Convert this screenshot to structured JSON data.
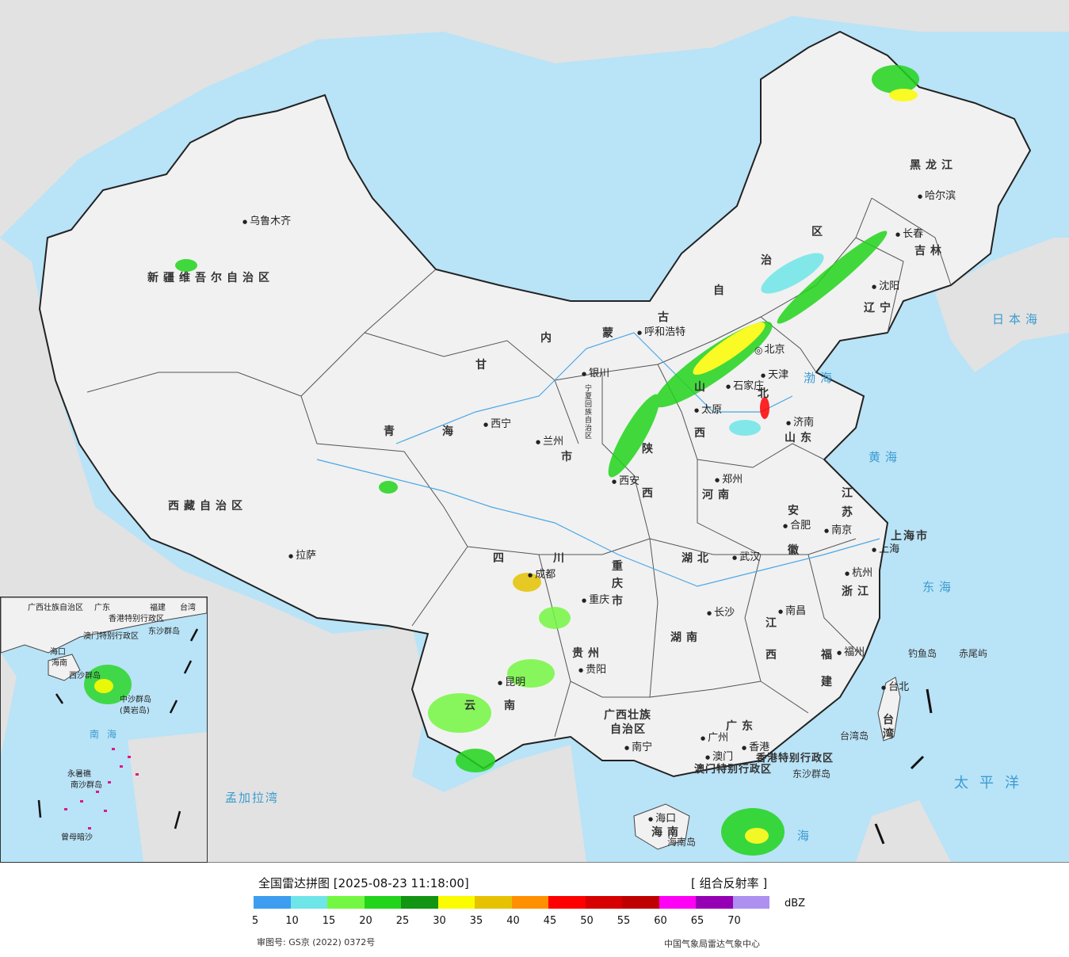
{
  "map": {
    "provinces": {
      "xinjiang": "新疆维吾尔自治区",
      "xizang": "西藏自治区",
      "qinghai_1": "青",
      "qinghai_2": "海",
      "gansu": "甘",
      "neimenggu_1": "内",
      "neimenggu_2": "蒙",
      "neimenggu_3": "古",
      "neimenggu_4": "自",
      "neimenggu_5": "治",
      "neimenggu_6": "区",
      "heilongjiang": "黑龙江",
      "jilin": "吉林",
      "liaoning": "辽宁",
      "hebei": "北",
      "shanxi_1": "山",
      "shanxi_2": "西",
      "shaanxi_1": "陕",
      "shaanxi_2": "西",
      "ningxia": "宁夏回族自治区",
      "shandong": "山东",
      "henan": "河南",
      "jiangsu_1": "江",
      "jiangsu_2": "苏",
      "anhui_1": "安",
      "anhui_2": "徽",
      "shanghai": "上海市",
      "hubei": "湖北",
      "sichuan_1": "四",
      "sichuan_2": "川",
      "chongqing": "重庆市",
      "zhejiang": "浙江",
      "jiangxi_1": "江",
      "jiangxi_2": "西",
      "hunan": "湖南",
      "guizhou": "贵州",
      "yunnan_1": "云",
      "yunnan_2": "南",
      "fujian_1": "福",
      "fujian_2": "建",
      "guangxi_1": "广西壮族",
      "guangxi_2": "自治区",
      "guangdong": "广东",
      "taiwan": "台湾",
      "hainan": "海南",
      "hk": "香港特别行政区",
      "macau": "澳门特别行政区",
      "gansu_city": "市",
      "hubei_bei": "北"
    },
    "cities": {
      "urumqi": "乌鲁木齐",
      "lhasa": "拉萨",
      "xining": "西宁",
      "lanzhou": "兰州",
      "yinchuan": "银川",
      "hohhot": "呼和浩特",
      "beijing": "北京",
      "tianjin": "天津",
      "shijiazhuang": "石家庄",
      "taiyuan": "太原",
      "jinan": "济南",
      "harbin": "哈尔滨",
      "changchun": "长春",
      "shenyang": "沈阳",
      "xian": "西安",
      "zhengzhou": "郑州",
      "hefei": "合肥",
      "nanjing": "南京",
      "shanghai": "上海",
      "hangzhou": "杭州",
      "wuhan": "武汉",
      "chengdu": "成都",
      "chongqing": "重庆",
      "changsha": "长沙",
      "nanchang": "南昌",
      "guiyang": "贵阳",
      "kunming": "昆明",
      "fuzhou": "福州",
      "taibei": "台北",
      "nanning": "南宁",
      "guangzhou": "广州",
      "hongkong": "香港",
      "macao": "澳门",
      "haikou": "海口"
    },
    "seas": {
      "japan_sea": "日本海",
      "bohai": "渤海",
      "yellow_sea": "黄海",
      "east_sea": "东海",
      "pacific": "太平洋",
      "bengal": "孟加拉湾",
      "south_sea": "海"
    },
    "islands": {
      "diaoyu": "钓鱼岛",
      "chiwei": "赤尾屿",
      "taiwan_island": "台湾岛",
      "dongsha": "东沙群岛",
      "hainan_island": "海南岛"
    },
    "inset": {
      "guangxi": "广西壮族自治区",
      "guangdong": "广东",
      "fujian": "福建",
      "taiwan": "台湾",
      "hk": "香港特别行政区",
      "macau": "澳门特别行政区",
      "dongsha": "东沙群岛",
      "haikou": "海口",
      "hainan": "海南",
      "xisha": "西沙群岛",
      "zhongsha": "中沙群岛",
      "huangyan": "(黄岩岛)",
      "south_sea": "南海",
      "yongshu": "永暑礁",
      "nansha": "南沙群岛",
      "zengmu": "曾母暗沙"
    }
  },
  "legend": {
    "title": "全国雷达拼图 [2025-08-23 11:18:00]",
    "product": "[ 组合反射率 ]",
    "unit": "dBZ",
    "colors": [
      "#3d9ef0",
      "#6ee5e8",
      "#74f742",
      "#22d41c",
      "#129512",
      "#fcfc00",
      "#e6c200",
      "#ff9100",
      "#ff0000",
      "#d60000",
      "#bf0000",
      "#ff00f7",
      "#9600b4",
      "#ad90f0"
    ],
    "ticks": [
      "5",
      "10",
      "15",
      "20",
      "25",
      "30",
      "35",
      "40",
      "45",
      "50",
      "55",
      "60",
      "65",
      "70"
    ],
    "review_no": "审图号: GS京 (2022) 0372号",
    "org": "中国气象局雷达气象中心"
  }
}
